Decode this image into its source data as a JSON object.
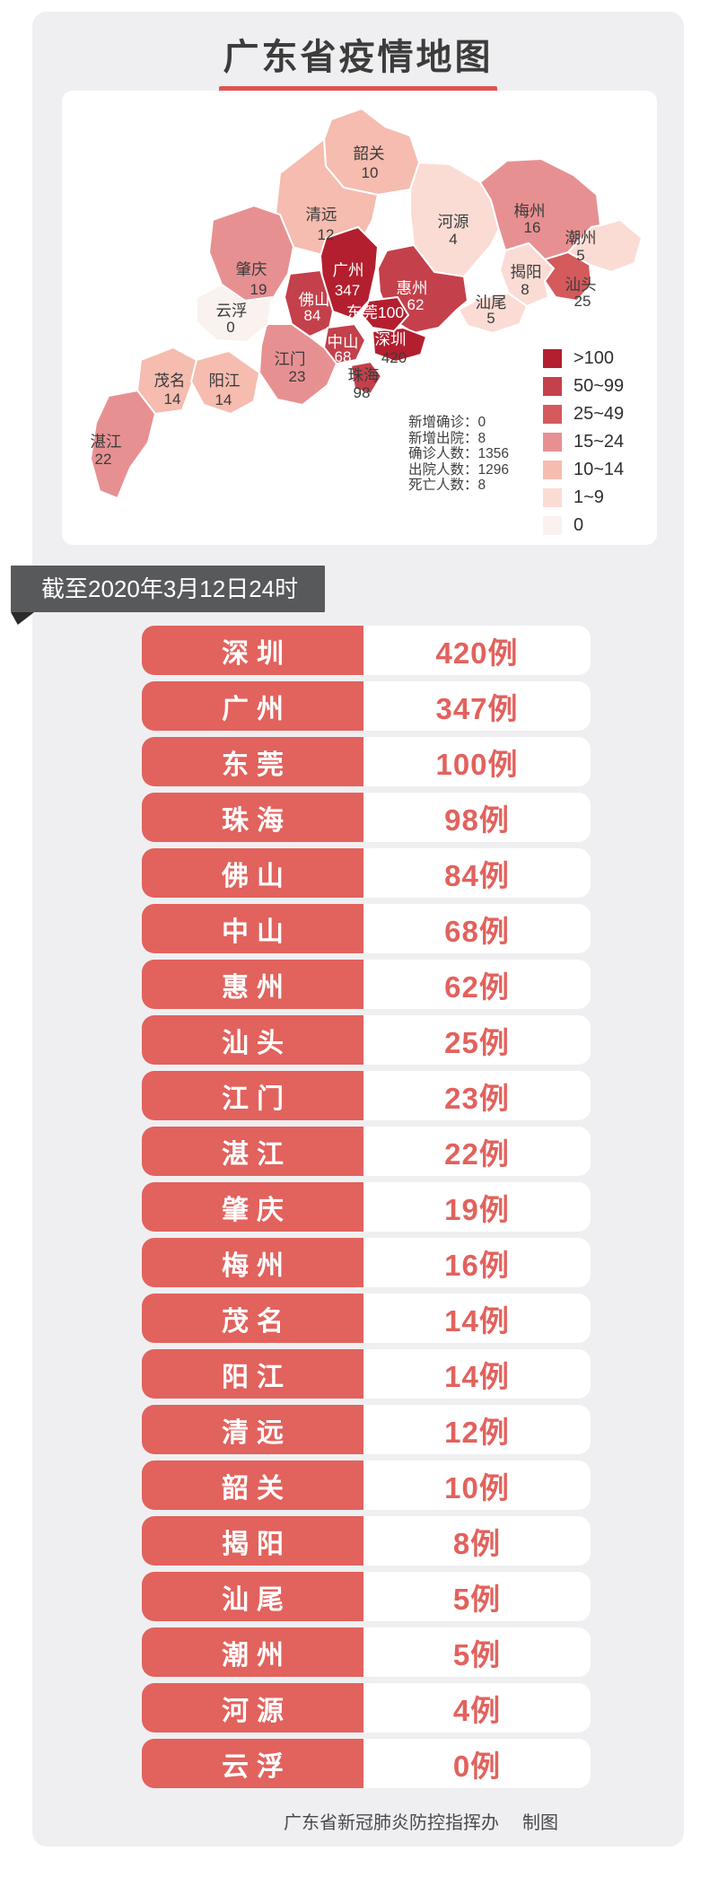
{
  "title": "广东省疫情地图",
  "banner": {
    "date_label": "截至2020年3月12日24时"
  },
  "map": {
    "legend": [
      {
        "key": "gt100",
        "label": ">100",
        "color": "#b31f2e"
      },
      {
        "key": "b50_99",
        "label": "50~99",
        "color": "#c4404b"
      },
      {
        "key": "b25_49",
        "label": "25~49",
        "color": "#d45a5c"
      },
      {
        "key": "b15_24",
        "label": "15~24",
        "color": "#e79092"
      },
      {
        "key": "b10_14",
        "label": "10~14",
        "color": "#f5bcaf"
      },
      {
        "key": "b1_9",
        "label": "1~9",
        "color": "#fbdcd5"
      },
      {
        "key": "b0",
        "label": "0",
        "color": "#f9f2ee"
      }
    ],
    "stats": [
      {
        "label": "新增确诊",
        "value": "0"
      },
      {
        "label": "新增出院",
        "value": "8"
      },
      {
        "label": "确诊人数",
        "value": "1356"
      },
      {
        "label": "出院人数",
        "value": "1296"
      },
      {
        "label": "死亡人数",
        "value": "8"
      }
    ],
    "regions": [
      {
        "id": "shaoguan",
        "name": "韶关",
        "cases": 10,
        "bucket": "b10_14"
      },
      {
        "id": "qingyuan",
        "name": "清远",
        "cases": 12,
        "bucket": "b10_14"
      },
      {
        "id": "heyuan",
        "name": "河源",
        "cases": 4,
        "bucket": "b1_9"
      },
      {
        "id": "meizhou",
        "name": "梅州",
        "cases": 16,
        "bucket": "b15_24"
      },
      {
        "id": "chaozhou",
        "name": "潮州",
        "cases": 5,
        "bucket": "b1_9"
      },
      {
        "id": "jieyang",
        "name": "揭阳",
        "cases": 8,
        "bucket": "b1_9"
      },
      {
        "id": "shantou",
        "name": "汕头",
        "cases": 25,
        "bucket": "b25_49"
      },
      {
        "id": "shanwei",
        "name": "汕尾",
        "cases": 5,
        "bucket": "b1_9"
      },
      {
        "id": "huizhou",
        "name": "惠州",
        "cases": 62,
        "bucket": "b50_99"
      },
      {
        "id": "shenzhen",
        "name": "深圳",
        "cases": 420,
        "bucket": "gt100"
      },
      {
        "id": "dongguan",
        "name": "东莞",
        "cases": 100,
        "bucket": "gt100"
      },
      {
        "id": "guangzhou",
        "name": "广州",
        "cases": 347,
        "bucket": "gt100"
      },
      {
        "id": "foshan",
        "name": "佛山",
        "cases": 84,
        "bucket": "b50_99"
      },
      {
        "id": "zhongshan",
        "name": "中山",
        "cases": 68,
        "bucket": "b50_99"
      },
      {
        "id": "zhuhai",
        "name": "珠海",
        "cases": 98,
        "bucket": "b50_99"
      },
      {
        "id": "jiangmen",
        "name": "江门",
        "cases": 23,
        "bucket": "b15_24"
      },
      {
        "id": "zhaoqing",
        "name": "肇庆",
        "cases": 19,
        "bucket": "b15_24"
      },
      {
        "id": "yunfu",
        "name": "云浮",
        "cases": 0,
        "bucket": "b0"
      },
      {
        "id": "maoming",
        "name": "茂名",
        "cases": 14,
        "bucket": "b10_14"
      },
      {
        "id": "yangjiang",
        "name": "阳江",
        "cases": 14,
        "bucket": "b10_14"
      },
      {
        "id": "zhanjiang",
        "name": "湛江",
        "cases": 22,
        "bucket": "b15_24"
      }
    ]
  },
  "list": {
    "unit": "例",
    "rows": [
      {
        "city": "深圳",
        "cases": 420
      },
      {
        "city": "广州",
        "cases": 347
      },
      {
        "city": "东莞",
        "cases": 100
      },
      {
        "city": "珠海",
        "cases": 98
      },
      {
        "city": "佛山",
        "cases": 84
      },
      {
        "city": "中山",
        "cases": 68
      },
      {
        "city": "惠州",
        "cases": 62
      },
      {
        "city": "汕头",
        "cases": 25
      },
      {
        "city": "江门",
        "cases": 23
      },
      {
        "city": "湛江",
        "cases": 22
      },
      {
        "city": "肇庆",
        "cases": 19
      },
      {
        "city": "梅州",
        "cases": 16
      },
      {
        "city": "茂名",
        "cases": 14
      },
      {
        "city": "阳江",
        "cases": 14
      },
      {
        "city": "清远",
        "cases": 12
      },
      {
        "city": "韶关",
        "cases": 10
      },
      {
        "city": "揭阳",
        "cases": 8
      },
      {
        "city": "汕尾",
        "cases": 5
      },
      {
        "city": "潮州",
        "cases": 5
      },
      {
        "city": "河源",
        "cases": 4
      },
      {
        "city": "云浮",
        "cases": 0
      }
    ]
  },
  "footer": {
    "credit": "广东省新冠肺炎防控指挥办",
    "suffix": "制图"
  }
}
